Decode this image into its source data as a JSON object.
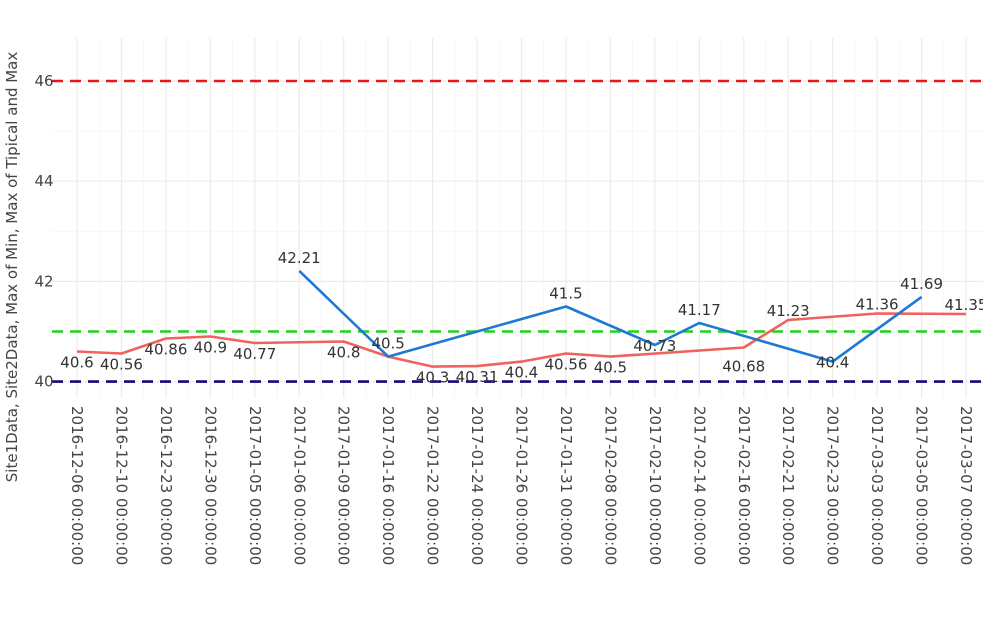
{
  "chart_data": {
    "type": "line",
    "ylabel": "Site1Data, Site2Data, Max of Min, Max of Tipical and Max",
    "ylim": [
      39.9,
      46.4
    ],
    "y_ticks": [
      "40",
      "42",
      "44",
      "46"
    ],
    "grid": true,
    "categories": [
      "2016-12-06 00:00:00",
      "2016-12-10 00:00:00",
      "2016-12-23 00:00:00",
      "2016-12-30 00:00:00",
      "2017-01-05 00:00:00",
      "2017-01-06 00:00:00",
      "2017-01-09 00:00:00",
      "2017-01-16 00:00:00",
      "2017-01-22 00:00:00",
      "2017-01-24 00:00:00",
      "2017-01-26 00:00:00",
      "2017-01-31 00:00:00",
      "2017-02-08 00:00:00",
      "2017-02-10 00:00:00",
      "2017-02-14 00:00:00",
      "2017-02-16 00:00:00",
      "2017-02-21 00:00:00",
      "2017-02-23 00:00:00",
      "2017-03-03 00:00:00",
      "2017-03-05 00:00:00",
      "2017-03-07 00:00:00"
    ],
    "series": [
      {
        "color": "#f0625d",
        "values": [
          40.6,
          40.56,
          40.86,
          40.9,
          40.77,
          null,
          40.8,
          40.5,
          40.3,
          40.31,
          40.4,
          40.56,
          40.5,
          null,
          null,
          40.68,
          41.23,
          null,
          41.36,
          null,
          41.35
        ],
        "labels": [
          "40.6",
          "40.56",
          "40.86",
          "40.9",
          "40.77",
          null,
          "40.8",
          null,
          "40.3",
          "40.31",
          "40.4",
          "40.56",
          "40.5",
          null,
          null,
          "40.68",
          "41.23",
          null,
          "41.36",
          null,
          "41.35"
        ]
      },
      {
        "color": "#1f78d1",
        "values": [
          null,
          null,
          null,
          null,
          null,
          42.21,
          null,
          40.5,
          null,
          null,
          null,
          41.5,
          null,
          40.73,
          41.17,
          null,
          null,
          40.4,
          null,
          41.69,
          null
        ],
        "labels": [
          null,
          null,
          null,
          null,
          null,
          "42.21",
          null,
          "40.5",
          null,
          null,
          null,
          "41.5",
          null,
          "40.73",
          "41.17",
          null,
          null,
          "40.4",
          null,
          "41.69",
          null
        ]
      }
    ],
    "reference_lines": [
      {
        "value": 46,
        "color": "#e31a1c",
        "style": "dashed"
      },
      {
        "value": 41,
        "color": "#22d11e",
        "style": "dashed"
      },
      {
        "value": 40,
        "color": "#140a75",
        "style": "dashed"
      }
    ]
  }
}
